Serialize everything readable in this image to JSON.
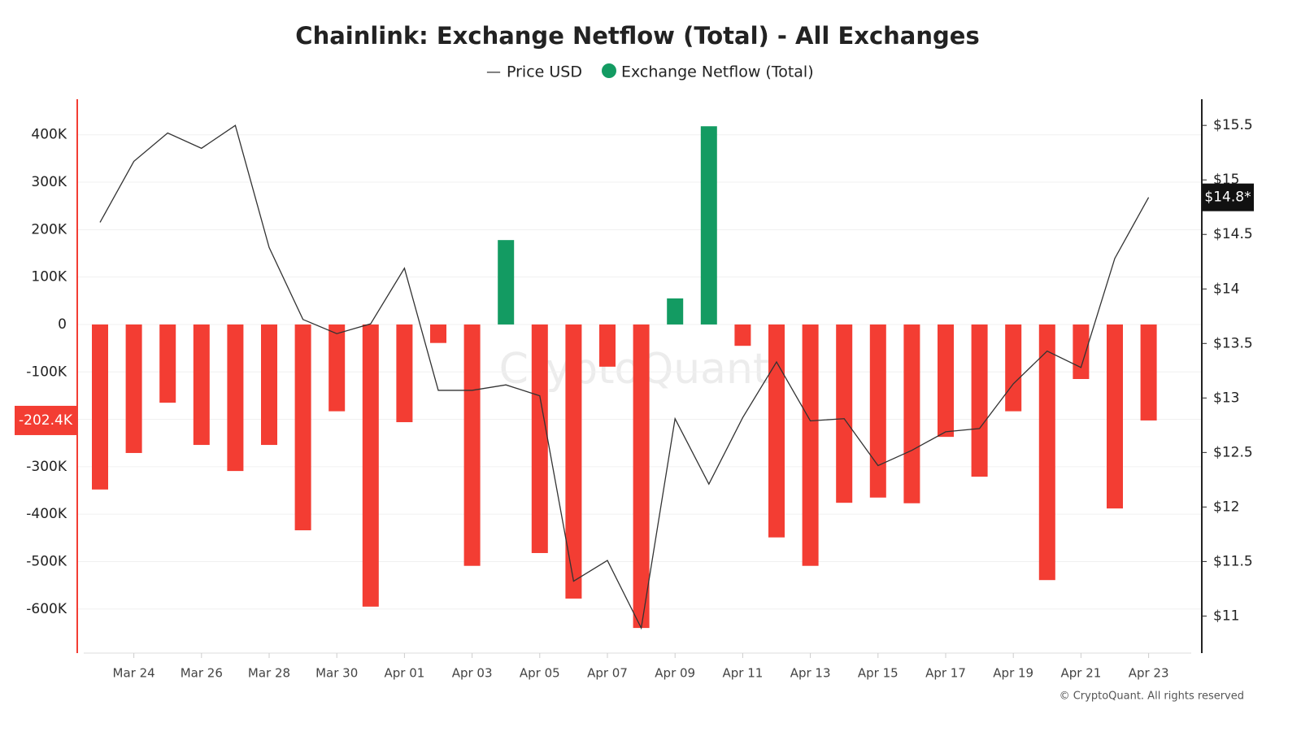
{
  "chart_data": {
    "type": "bar-line",
    "title": "Chainlink: Exchange Netflow (Total) - All Exchanges",
    "watermark": "CryptoQuant",
    "credit": "© CryptoQuant. All rights reserved",
    "categories": [
      null,
      "Mar 24",
      null,
      "Mar 26",
      null,
      "Mar 28",
      null,
      "Mar 30",
      null,
      "Apr 01",
      null,
      "Apr 03",
      null,
      "Apr 05",
      null,
      "Apr 07",
      null,
      "Apr 09",
      null,
      "Apr 11",
      null,
      "Apr 13",
      null,
      "Apr 15",
      null,
      "Apr 17",
      null,
      "Apr 19",
      null,
      "Apr 21",
      null,
      "Apr 23"
    ],
    "series": [
      {
        "name": "Price USD",
        "type": "line",
        "axis": "y2",
        "color": "#333333",
        "legend_marker": "—",
        "values": [
          14.61,
          15.17,
          15.43,
          15.29,
          15.5,
          14.38,
          13.72,
          13.59,
          13.68,
          14.19,
          13.07,
          13.07,
          13.12,
          13.02,
          11.32,
          11.51,
          10.89,
          12.81,
          12.21,
          12.82,
          13.33,
          12.79,
          12.81,
          12.38,
          12.52,
          12.69,
          12.72,
          13.13,
          13.43,
          13.28,
          14.28,
          14.84
        ],
        "last_label": "$14.8*"
      },
      {
        "name": "Exchange Netflow (Total)",
        "type": "bar",
        "color": "#139b62",
        "negative_color": "#f33d33",
        "values": [
          -348000,
          -271000,
          -165000,
          -254000,
          -309000,
          -254000,
          -434000,
          -183000,
          -595000,
          -206000,
          -39000,
          -509000,
          178000,
          -482000,
          -578000,
          -89000,
          -640000,
          55000,
          418000,
          -45000,
          -449000,
          -509000,
          -376000,
          -365000,
          -377000,
          -237000,
          -321000,
          -183000,
          -539000,
          -115000,
          -388000,
          -202400
        ],
        "last_label": "-202.4K"
      }
    ],
    "ylim": [
      -693000,
      475000
    ],
    "yticks": [
      {
        "value": -600000,
        "label": "-600K"
      },
      {
        "value": -500000,
        "label": "-500K"
      },
      {
        "value": -400000,
        "label": "-400K"
      },
      {
        "value": -300000,
        "label": "-300K"
      },
      {
        "value": -200000,
        "label": "-200K"
      },
      {
        "value": -100000,
        "label": "-100K"
      },
      0,
      {
        "value": 100000,
        "label": "100K"
      },
      {
        "value": 200000,
        "label": "200K"
      },
      {
        "value": 300000,
        "label": "300K"
      },
      {
        "value": 400000,
        "label": "400K"
      }
    ],
    "y2lim": [
      10.66,
      15.74
    ],
    "y2ticks": [
      {
        "value": 11,
        "label": "$11"
      },
      {
        "value": 11.5,
        "label": "$11.5"
      },
      {
        "value": 12,
        "label": "$12"
      },
      {
        "value": 12.5,
        "label": "$12.5"
      },
      {
        "value": 13,
        "label": "$13"
      },
      {
        "value": 13.5,
        "label": "$13.5"
      },
      {
        "value": 14,
        "label": "$14"
      },
      {
        "value": 14.5,
        "label": "$14.5"
      },
      {
        "value": 15,
        "label": "$15"
      },
      {
        "value": 15.5,
        "label": "$15.5"
      }
    ],
    "grid": true
  }
}
